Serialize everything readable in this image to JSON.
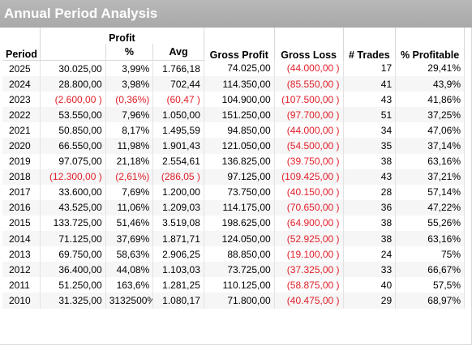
{
  "title": "Annual Period Analysis",
  "headers": {
    "period": "Period",
    "profit_group": "Profit",
    "profit_pct": "%",
    "profit_avg": "Avg",
    "gross_profit": "Gross Profit",
    "gross_loss": "Gross Loss",
    "trades": "# Trades",
    "pct_profitable": "% Profitable"
  },
  "colors": {
    "negative": "#e0202a",
    "title_bg": "#a9a9a9"
  },
  "rows": [
    {
      "period": "2025",
      "profit": "30.025,00",
      "pct": "3,99%",
      "avg": "1.766,18",
      "gross_profit": "74.025,00",
      "gross_loss": "(44.000,00 )",
      "trades": "17",
      "pct_profitable": "29,41%",
      "neg_profit": false
    },
    {
      "period": "2024",
      "profit": "28.800,00",
      "pct": "3,98%",
      "avg": "702,44",
      "gross_profit": "114.350,00",
      "gross_loss": "(85.550,00 )",
      "trades": "41",
      "pct_profitable": "43,9%",
      "neg_profit": false
    },
    {
      "period": "2023",
      "profit": "(2.600,00 )",
      "pct": "(0,36%)",
      "avg": "(60,47 )",
      "gross_profit": "104.900,00",
      "gross_loss": "(107.500,00 )",
      "trades": "43",
      "pct_profitable": "41,86%",
      "neg_profit": true
    },
    {
      "period": "2022",
      "profit": "53.550,00",
      "pct": "7,96%",
      "avg": "1.050,00",
      "gross_profit": "151.250,00",
      "gross_loss": "(97.700,00 )",
      "trades": "51",
      "pct_profitable": "37,25%",
      "neg_profit": false
    },
    {
      "period": "2021",
      "profit": "50.850,00",
      "pct": "8,17%",
      "avg": "1.495,59",
      "gross_profit": "94.850,00",
      "gross_loss": "(44.000,00 )",
      "trades": "34",
      "pct_profitable": "47,06%",
      "neg_profit": false
    },
    {
      "period": "2020",
      "profit": "66.550,00",
      "pct": "11,98%",
      "avg": "1.901,43",
      "gross_profit": "121.050,00",
      "gross_loss": "(54.500,00 )",
      "trades": "35",
      "pct_profitable": "37,14%",
      "neg_profit": false
    },
    {
      "period": "2019",
      "profit": "97.075,00",
      "pct": "21,18%",
      "avg": "2.554,61",
      "gross_profit": "136.825,00",
      "gross_loss": "(39.750,00 )",
      "trades": "38",
      "pct_profitable": "63,16%",
      "neg_profit": false
    },
    {
      "period": "2018",
      "profit": "(12.300,00 )",
      "pct": "(2,61%)",
      "avg": "(286,05 )",
      "gross_profit": "97.125,00",
      "gross_loss": "(109.425,00 )",
      "trades": "43",
      "pct_profitable": "37,21%",
      "neg_profit": true
    },
    {
      "period": "2017",
      "profit": "33.600,00",
      "pct": "7,69%",
      "avg": "1.200,00",
      "gross_profit": "73.750,00",
      "gross_loss": "(40.150,00 )",
      "trades": "28",
      "pct_profitable": "57,14%",
      "neg_profit": false
    },
    {
      "period": "2016",
      "profit": "43.525,00",
      "pct": "11,06%",
      "avg": "1.209,03",
      "gross_profit": "114.175,00",
      "gross_loss": "(70.650,00 )",
      "trades": "36",
      "pct_profitable": "47,22%",
      "neg_profit": false
    },
    {
      "period": "2015",
      "profit": "133.725,00",
      "pct": "51,46%",
      "avg": "3.519,08",
      "gross_profit": "198.625,00",
      "gross_loss": "(64.900,00 )",
      "trades": "38",
      "pct_profitable": "55,26%",
      "neg_profit": false
    },
    {
      "period": "2014",
      "profit": "71.125,00",
      "pct": "37,69%",
      "avg": "1.871,71",
      "gross_profit": "124.050,00",
      "gross_loss": "(52.925,00 )",
      "trades": "38",
      "pct_profitable": "63,16%",
      "neg_profit": false
    },
    {
      "period": "2013",
      "profit": "69.750,00",
      "pct": "58,63%",
      "avg": "2.906,25",
      "gross_profit": "88.850,00",
      "gross_loss": "(19.100,00 )",
      "trades": "24",
      "pct_profitable": "75%",
      "neg_profit": false
    },
    {
      "period": "2012",
      "profit": "36.400,00",
      "pct": "44,08%",
      "avg": "1.103,03",
      "gross_profit": "73.725,00",
      "gross_loss": "(37.325,00 )",
      "trades": "33",
      "pct_profitable": "66,67%",
      "neg_profit": false
    },
    {
      "period": "2011",
      "profit": "51.250,00",
      "pct": "163,6%",
      "avg": "1.281,25",
      "gross_profit": "110.125,00",
      "gross_loss": "(58.875,00 )",
      "trades": "40",
      "pct_profitable": "57,5%",
      "neg_profit": false
    },
    {
      "period": "2010",
      "profit": "31.325,00",
      "pct": "3132500%",
      "avg": "1.080,17",
      "gross_profit": "71.800,00",
      "gross_loss": "(40.475,00 )",
      "trades": "29",
      "pct_profitable": "68,97%",
      "neg_profit": false
    }
  ]
}
